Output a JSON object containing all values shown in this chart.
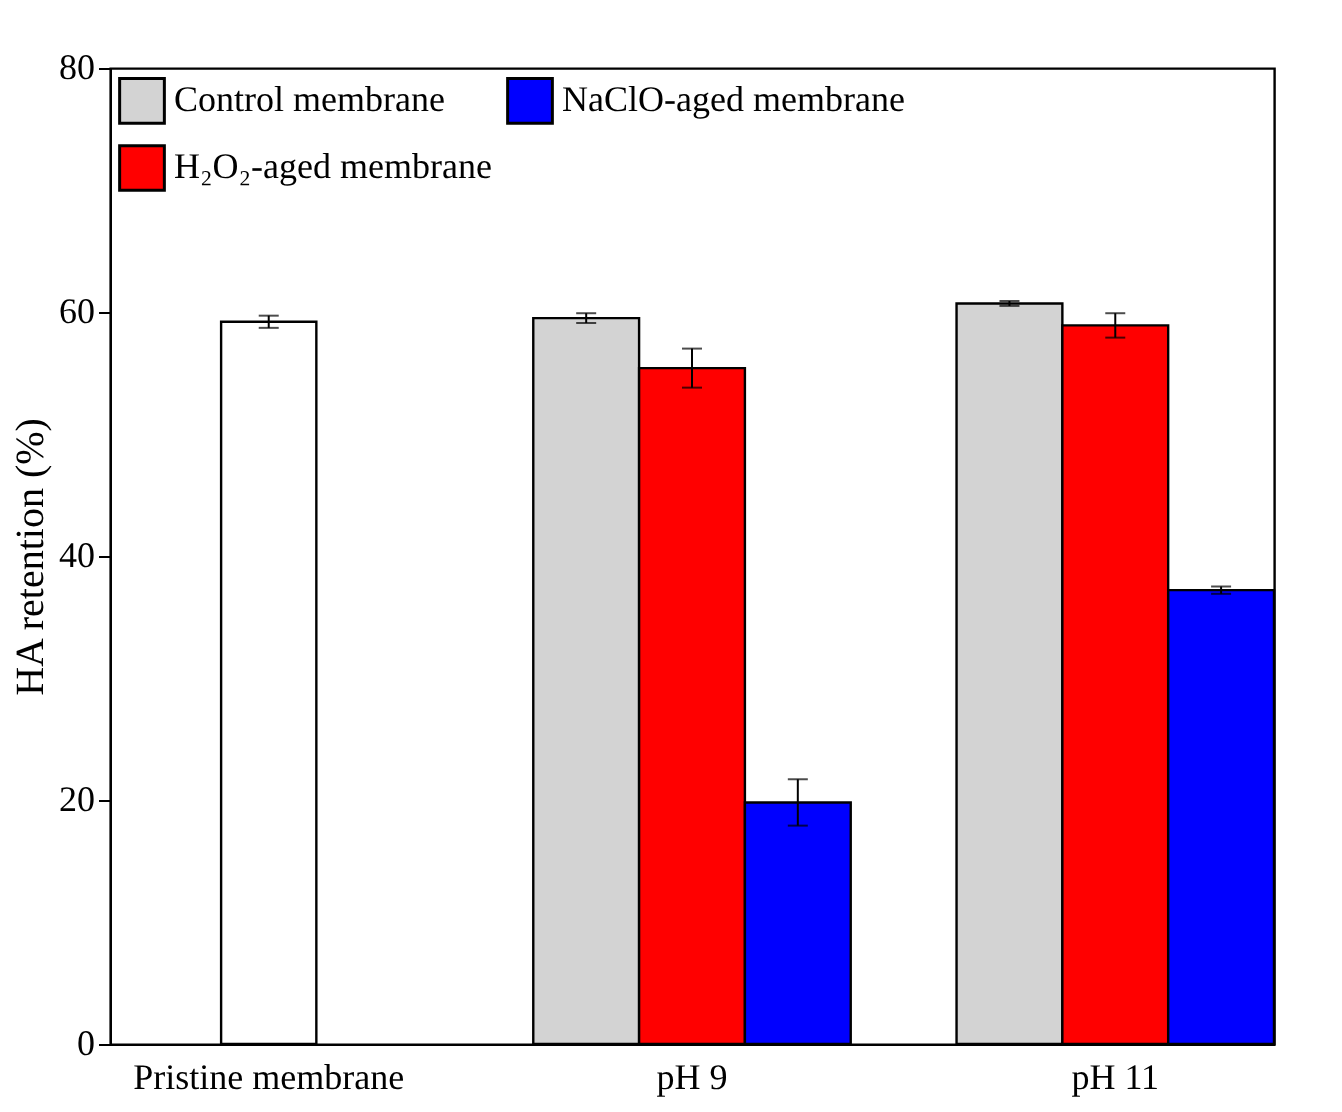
{
  "chart_data": {
    "type": "bar",
    "ylabel": "HA retention (%)",
    "categories": [
      "Pristine membrane",
      "pH 9",
      "pH 11"
    ],
    "series": [
      {
        "color": "#ffffff",
        "values": [
          59.2,
          null,
          null
        ],
        "errors": [
          0.5,
          null,
          null
        ]
      },
      {
        "name": "Control membrane",
        "color": "#d3d3d3",
        "values": [
          null,
          59.5,
          60.7
        ],
        "errors": [
          null,
          0.4,
          0.2
        ]
      },
      {
        "name": "H₂O₂-aged membrane",
        "color": "#ff0000",
        "values": [
          null,
          55.4,
          58.9
        ],
        "errors": [
          null,
          1.6,
          1.0
        ]
      },
      {
        "name": "NaClO-aged membrane",
        "color": "#0000ff",
        "values": [
          null,
          19.8,
          37.2
        ],
        "errors": [
          null,
          1.9,
          0.3
        ]
      }
    ],
    "ylim": [
      0,
      80
    ],
    "yticks": [
      0,
      20,
      40,
      60,
      80
    ],
    "grid": false,
    "legend": "top left"
  }
}
